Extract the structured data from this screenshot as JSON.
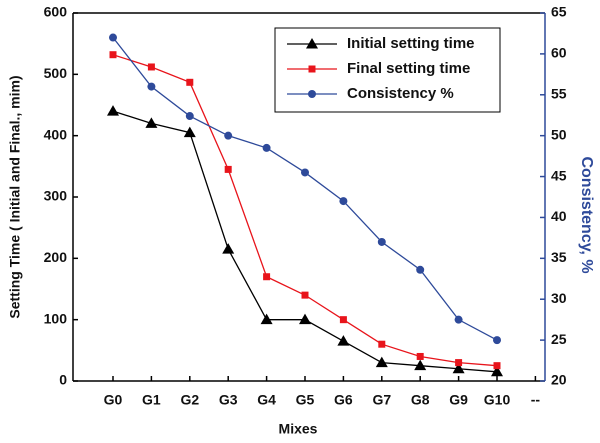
{
  "chart_data": {
    "type": "line",
    "x_label": "Mixes",
    "y_label": "Setting Time ( Initial and Final., mim)",
    "y2_label": "Consistency, %",
    "categories": [
      "G0",
      "G1",
      "G2",
      "G3",
      "G4",
      "G5",
      "G6",
      "G7",
      "G8",
      "G9",
      "G10",
      "--"
    ],
    "series": [
      {
        "name": "Initial setting time",
        "color": "#000000",
        "marker": "triangle",
        "values": [
          440,
          420,
          405,
          215,
          100,
          100,
          65,
          30,
          25,
          20,
          15,
          null
        ]
      },
      {
        "name": "Final setting time",
        "color": "#e8141b",
        "marker": "square",
        "values": [
          532,
          512,
          487,
          345,
          170,
          140,
          100,
          60,
          40,
          30,
          25,
          null
        ]
      },
      {
        "name": "Consistency %",
        "color": "#2e4a9a",
        "marker": "circle",
        "axis": "y2",
        "values": [
          62,
          56,
          52.4,
          50,
          48.5,
          45.5,
          42,
          37,
          33.6,
          27.5,
          25,
          null
        ]
      }
    ],
    "ylim": [
      0,
      600
    ],
    "yticks": [
      0,
      100,
      200,
      300,
      400,
      500,
      600
    ],
    "y2lim": [
      20,
      65
    ],
    "y2ticks": [
      20,
      25,
      30,
      35,
      40,
      45,
      50,
      55,
      60,
      65
    ],
    "y2_color": "#2e4a9a",
    "legend": "upper right"
  }
}
